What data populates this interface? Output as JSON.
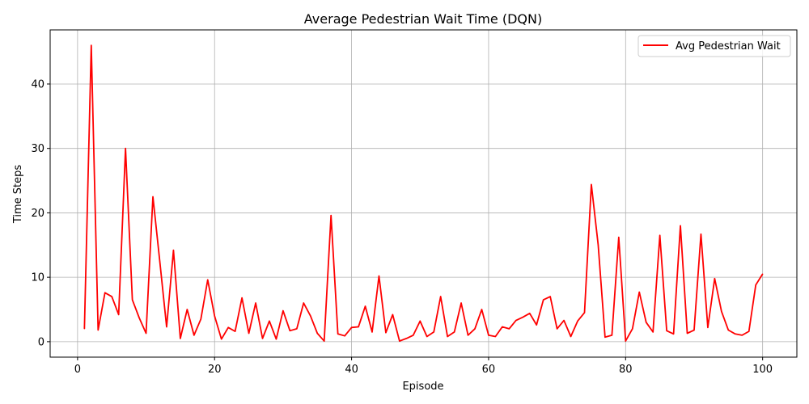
{
  "chart_data": {
    "type": "line",
    "title": "Average Pedestrian Wait Time (DQN)",
    "xlabel": "Episode",
    "ylabel": "Time Steps",
    "xlim": [
      -4,
      105
    ],
    "ylim": [
      -2.4,
      48.4
    ],
    "xticks": [
      0,
      20,
      40,
      60,
      80,
      100
    ],
    "yticks": [
      0,
      10,
      20,
      30,
      40
    ],
    "grid": true,
    "legend_position": "upper right",
    "series": [
      {
        "name": "Avg Pedestrian Wait",
        "color": "#ff0000",
        "x": [
          1,
          2,
          3,
          4,
          5,
          6,
          7,
          8,
          9,
          10,
          11,
          12,
          13,
          14,
          15,
          16,
          17,
          18,
          19,
          20,
          21,
          22,
          23,
          24,
          25,
          26,
          27,
          28,
          29,
          30,
          31,
          32,
          33,
          34,
          35,
          36,
          37,
          38,
          39,
          40,
          41,
          42,
          43,
          44,
          45,
          46,
          47,
          48,
          49,
          50,
          51,
          52,
          53,
          54,
          55,
          56,
          57,
          58,
          59,
          60,
          61,
          62,
          63,
          64,
          65,
          66,
          67,
          68,
          69,
          70,
          71,
          72,
          73,
          74,
          75,
          76,
          77,
          78,
          79,
          80,
          81,
          82,
          83,
          84,
          85,
          86,
          87,
          88,
          89,
          90,
          91,
          92,
          93,
          94,
          95,
          96,
          97,
          98,
          99,
          100
        ],
        "y": [
          2.0,
          46.0,
          1.8,
          7.6,
          7.0,
          4.2,
          30.0,
          6.5,
          3.7,
          1.3,
          22.5,
          12.5,
          2.3,
          14.2,
          0.5,
          5.0,
          1.0,
          3.5,
          9.6,
          4.0,
          0.4,
          2.2,
          1.6,
          6.8,
          1.3,
          6.0,
          0.5,
          3.2,
          0.4,
          4.8,
          1.7,
          2.0,
          6.0,
          4.0,
          1.3,
          0.1,
          19.6,
          1.2,
          0.9,
          2.2,
          2.3,
          5.5,
          1.5,
          10.2,
          1.4,
          4.2,
          0.1,
          0.5,
          1.0,
          3.2,
          0.8,
          1.5,
          7.0,
          0.8,
          1.5,
          6.0,
          1.0,
          2.0,
          5.0,
          1.0,
          0.8,
          2.3,
          2.0,
          3.3,
          3.8,
          4.4,
          2.6,
          6.5,
          7.0,
          2.0,
          3.3,
          0.8,
          3.2,
          4.5,
          24.4,
          15.0,
          0.7,
          1.0,
          16.2,
          0.1,
          2.0,
          7.7,
          3.0,
          1.5,
          16.5,
          1.7,
          1.2,
          18.0,
          1.3,
          1.8,
          16.7,
          2.2,
          9.8,
          4.7,
          1.8,
          1.2,
          1.0,
          1.6,
          8.8,
          10.5
        ]
      }
    ]
  }
}
